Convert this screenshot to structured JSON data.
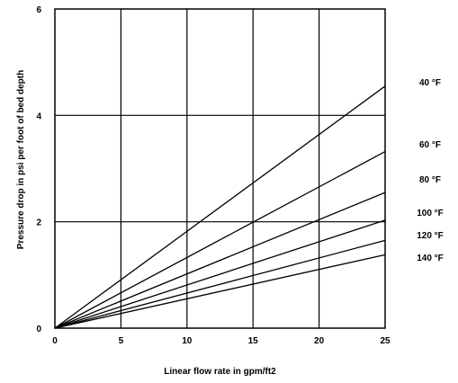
{
  "chart_data": {
    "type": "line",
    "title": "",
    "xlabel": "Linear flow rate in gpm/ft2",
    "ylabel": "Pressure drop in psi per foot of bed depth",
    "xlim": [
      0,
      25
    ],
    "ylim": [
      0,
      6
    ],
    "x_ticks": [
      0,
      5,
      10,
      15,
      20,
      25
    ],
    "y_ticks": [
      0,
      2,
      4,
      6
    ],
    "grid": true,
    "legend": "none",
    "series": [
      {
        "name": "40 °F",
        "x": [
          0,
          25
        ],
        "y": [
          0,
          4.55
        ]
      },
      {
        "name": "60 °F",
        "x": [
          0,
          25
        ],
        "y": [
          0,
          3.32
        ]
      },
      {
        "name": "80 °F",
        "x": [
          0,
          25
        ],
        "y": [
          0,
          2.55
        ]
      },
      {
        "name": "100 °F",
        "x": [
          0,
          25
        ],
        "y": [
          0,
          2.03
        ]
      },
      {
        "name": "120 °F",
        "x": [
          0,
          25
        ],
        "y": [
          0,
          1.65
        ]
      },
      {
        "name": "140 °F",
        "x": [
          0,
          25
        ],
        "y": [
          0,
          1.38
        ]
      }
    ]
  }
}
